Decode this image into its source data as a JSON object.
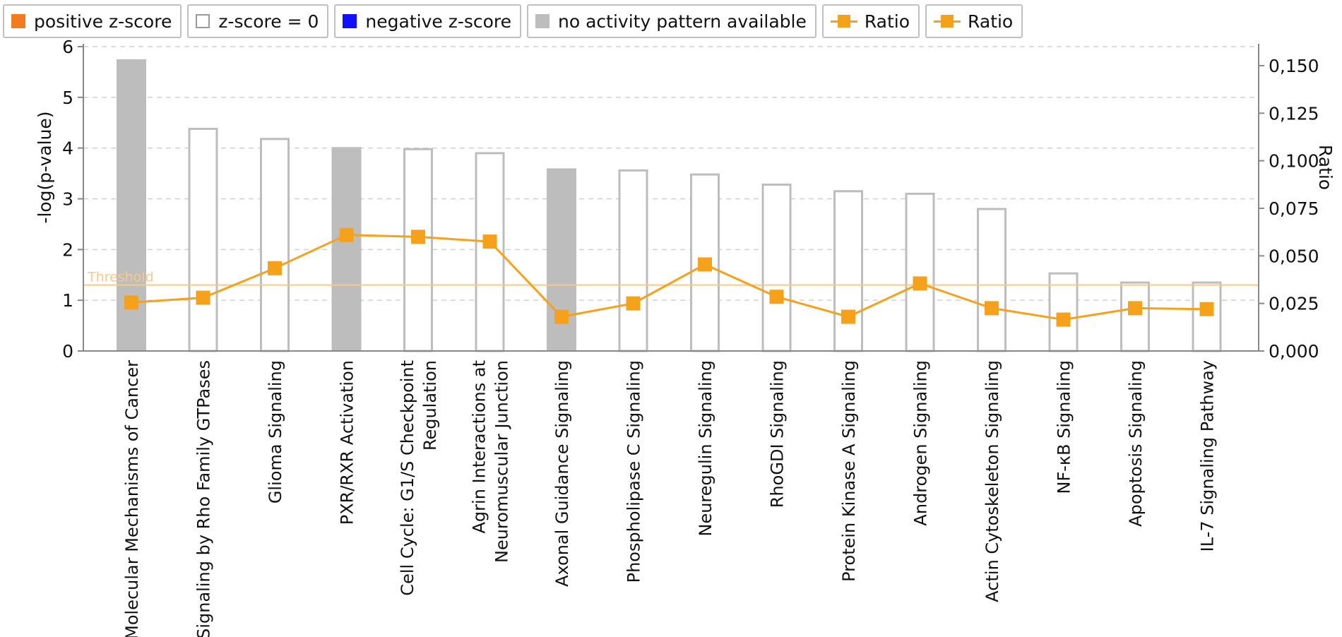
{
  "colors": {
    "positive": "#f47a1f",
    "zero_fill": "#ffffff",
    "zero_stroke": "#bdbdbd",
    "negative": "#1010ff",
    "no_activity": "#bdbdbd",
    "ratio_line": "#f5a11c",
    "threshold": "#f7c98a",
    "grid": "#d0d0d0",
    "axis": "#888888"
  },
  "legend": [
    {
      "label": "positive z-score",
      "kind": "positive"
    },
    {
      "label": "z-score = 0",
      "kind": "zero"
    },
    {
      "label": "negative z-score",
      "kind": "negative"
    },
    {
      "label": "no activity pattern available",
      "kind": "no_activity"
    },
    {
      "label": "Ratio",
      "kind": "line"
    },
    {
      "label": "Ratio",
      "kind": "line"
    }
  ],
  "chart_data": {
    "type": "bar",
    "title": "",
    "xlabel": "",
    "ylabel": "-log(p-value)",
    "y2label": "Ratio",
    "ylim": [
      0,
      6
    ],
    "y2lim": [
      0,
      0.16
    ],
    "yticks": [
      "0",
      "1",
      "2",
      "3",
      "4",
      "5",
      "6"
    ],
    "y2ticks": [
      "0,000",
      "0,025",
      "0,050",
      "0,075",
      "0,100",
      "0,125",
      "0,150"
    ],
    "grid": true,
    "threshold": {
      "label": "Threshold",
      "value": 1.3
    },
    "categories": [
      [
        "Molecular Mechanisms of Cancer"
      ],
      [
        "Signaling by Rho Family GTPases"
      ],
      [
        "Glioma Signaling"
      ],
      [
        "PXR/RXR Activation"
      ],
      [
        "Cell Cycle: G1/S Checkpoint",
        "Regulation"
      ],
      [
        "Agrin Interactions at",
        "Neuromuscular Junction"
      ],
      [
        "Axonal Guidance Signaling"
      ],
      [
        "Phospholipase C Signaling"
      ],
      [
        "Neuregulin Signaling"
      ],
      [
        "RhoGDI Signaling"
      ],
      [
        "Protein Kinase A Signaling"
      ],
      [
        "Androgen Signaling"
      ],
      [
        "Actin Cytoskeleton Signaling"
      ],
      [
        "NF-κB Signaling"
      ],
      [
        "Apoptosis Signaling"
      ],
      [
        "IL-7 Signaling Pathway"
      ]
    ],
    "series": [
      {
        "name": "-log(p-value)",
        "axis": "left",
        "values": [
          5.75,
          4.4,
          4.2,
          4.02,
          4.0,
          3.92,
          3.6,
          3.58,
          3.5,
          3.3,
          3.17,
          3.12,
          2.82,
          1.55,
          1.37,
          1.37
        ],
        "z_score": [
          "no_activity",
          "zero",
          "zero",
          "no_activity",
          "zero",
          "zero",
          "no_activity",
          "zero",
          "zero",
          "zero",
          "zero",
          "zero",
          "zero",
          "zero",
          "zero",
          "zero"
        ]
      },
      {
        "name": "Ratio",
        "axis": "right",
        "type": "line",
        "values": [
          0.0255,
          0.028,
          0.0435,
          0.061,
          0.06,
          0.0575,
          0.018,
          0.025,
          0.0455,
          0.0285,
          0.018,
          0.0355,
          0.0225,
          0.0165,
          0.0225,
          0.022
        ]
      }
    ]
  }
}
